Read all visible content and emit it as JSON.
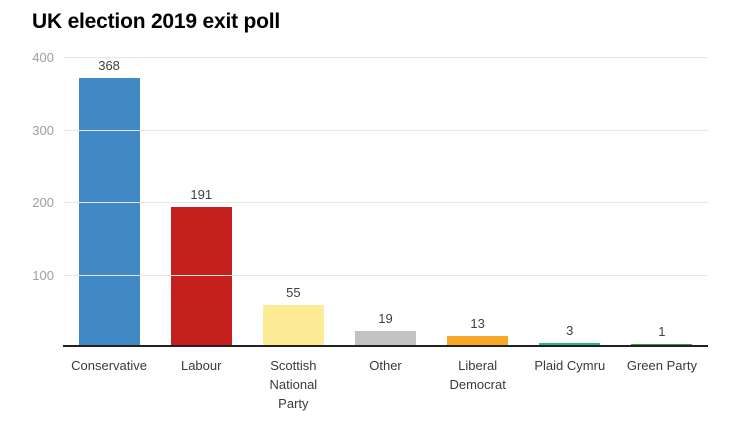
{
  "title": "UK election 2019 exit poll",
  "axis": {
    "baseline_color": "#212121",
    "gridline_color": "#e7e7e7",
    "tick_label_color": "#9e9e9e"
  },
  "chart_data": {
    "type": "bar",
    "title": "UK election 2019 exit poll",
    "categories": [
      "Conservative",
      "Labour",
      "Scottish National Party",
      "Other",
      "Liberal Democrat",
      "Plaid Cymru",
      "Green Party"
    ],
    "category_lines": [
      [
        "Conservative"
      ],
      [
        "Labour"
      ],
      [
        "Scottish",
        "National",
        "Party"
      ],
      [
        "Other"
      ],
      [
        "Liberal",
        "Democrat"
      ],
      [
        "Plaid Cymru"
      ],
      [
        "Green Party"
      ]
    ],
    "values": [
      368,
      191,
      55,
      19,
      13,
      3,
      1
    ],
    "bar_colors": [
      "#4189c5",
      "#c5201d",
      "#fdec95",
      "#c2c2c2",
      "#f9a825",
      "#21ba8c",
      "#33a12c"
    ],
    "xlabel": "",
    "ylabel": "",
    "ylim": [
      0,
      400
    ],
    "yticks": [
      100,
      200,
      300,
      400
    ],
    "grid": true,
    "legend": "none",
    "value_labels_shown": true
  }
}
